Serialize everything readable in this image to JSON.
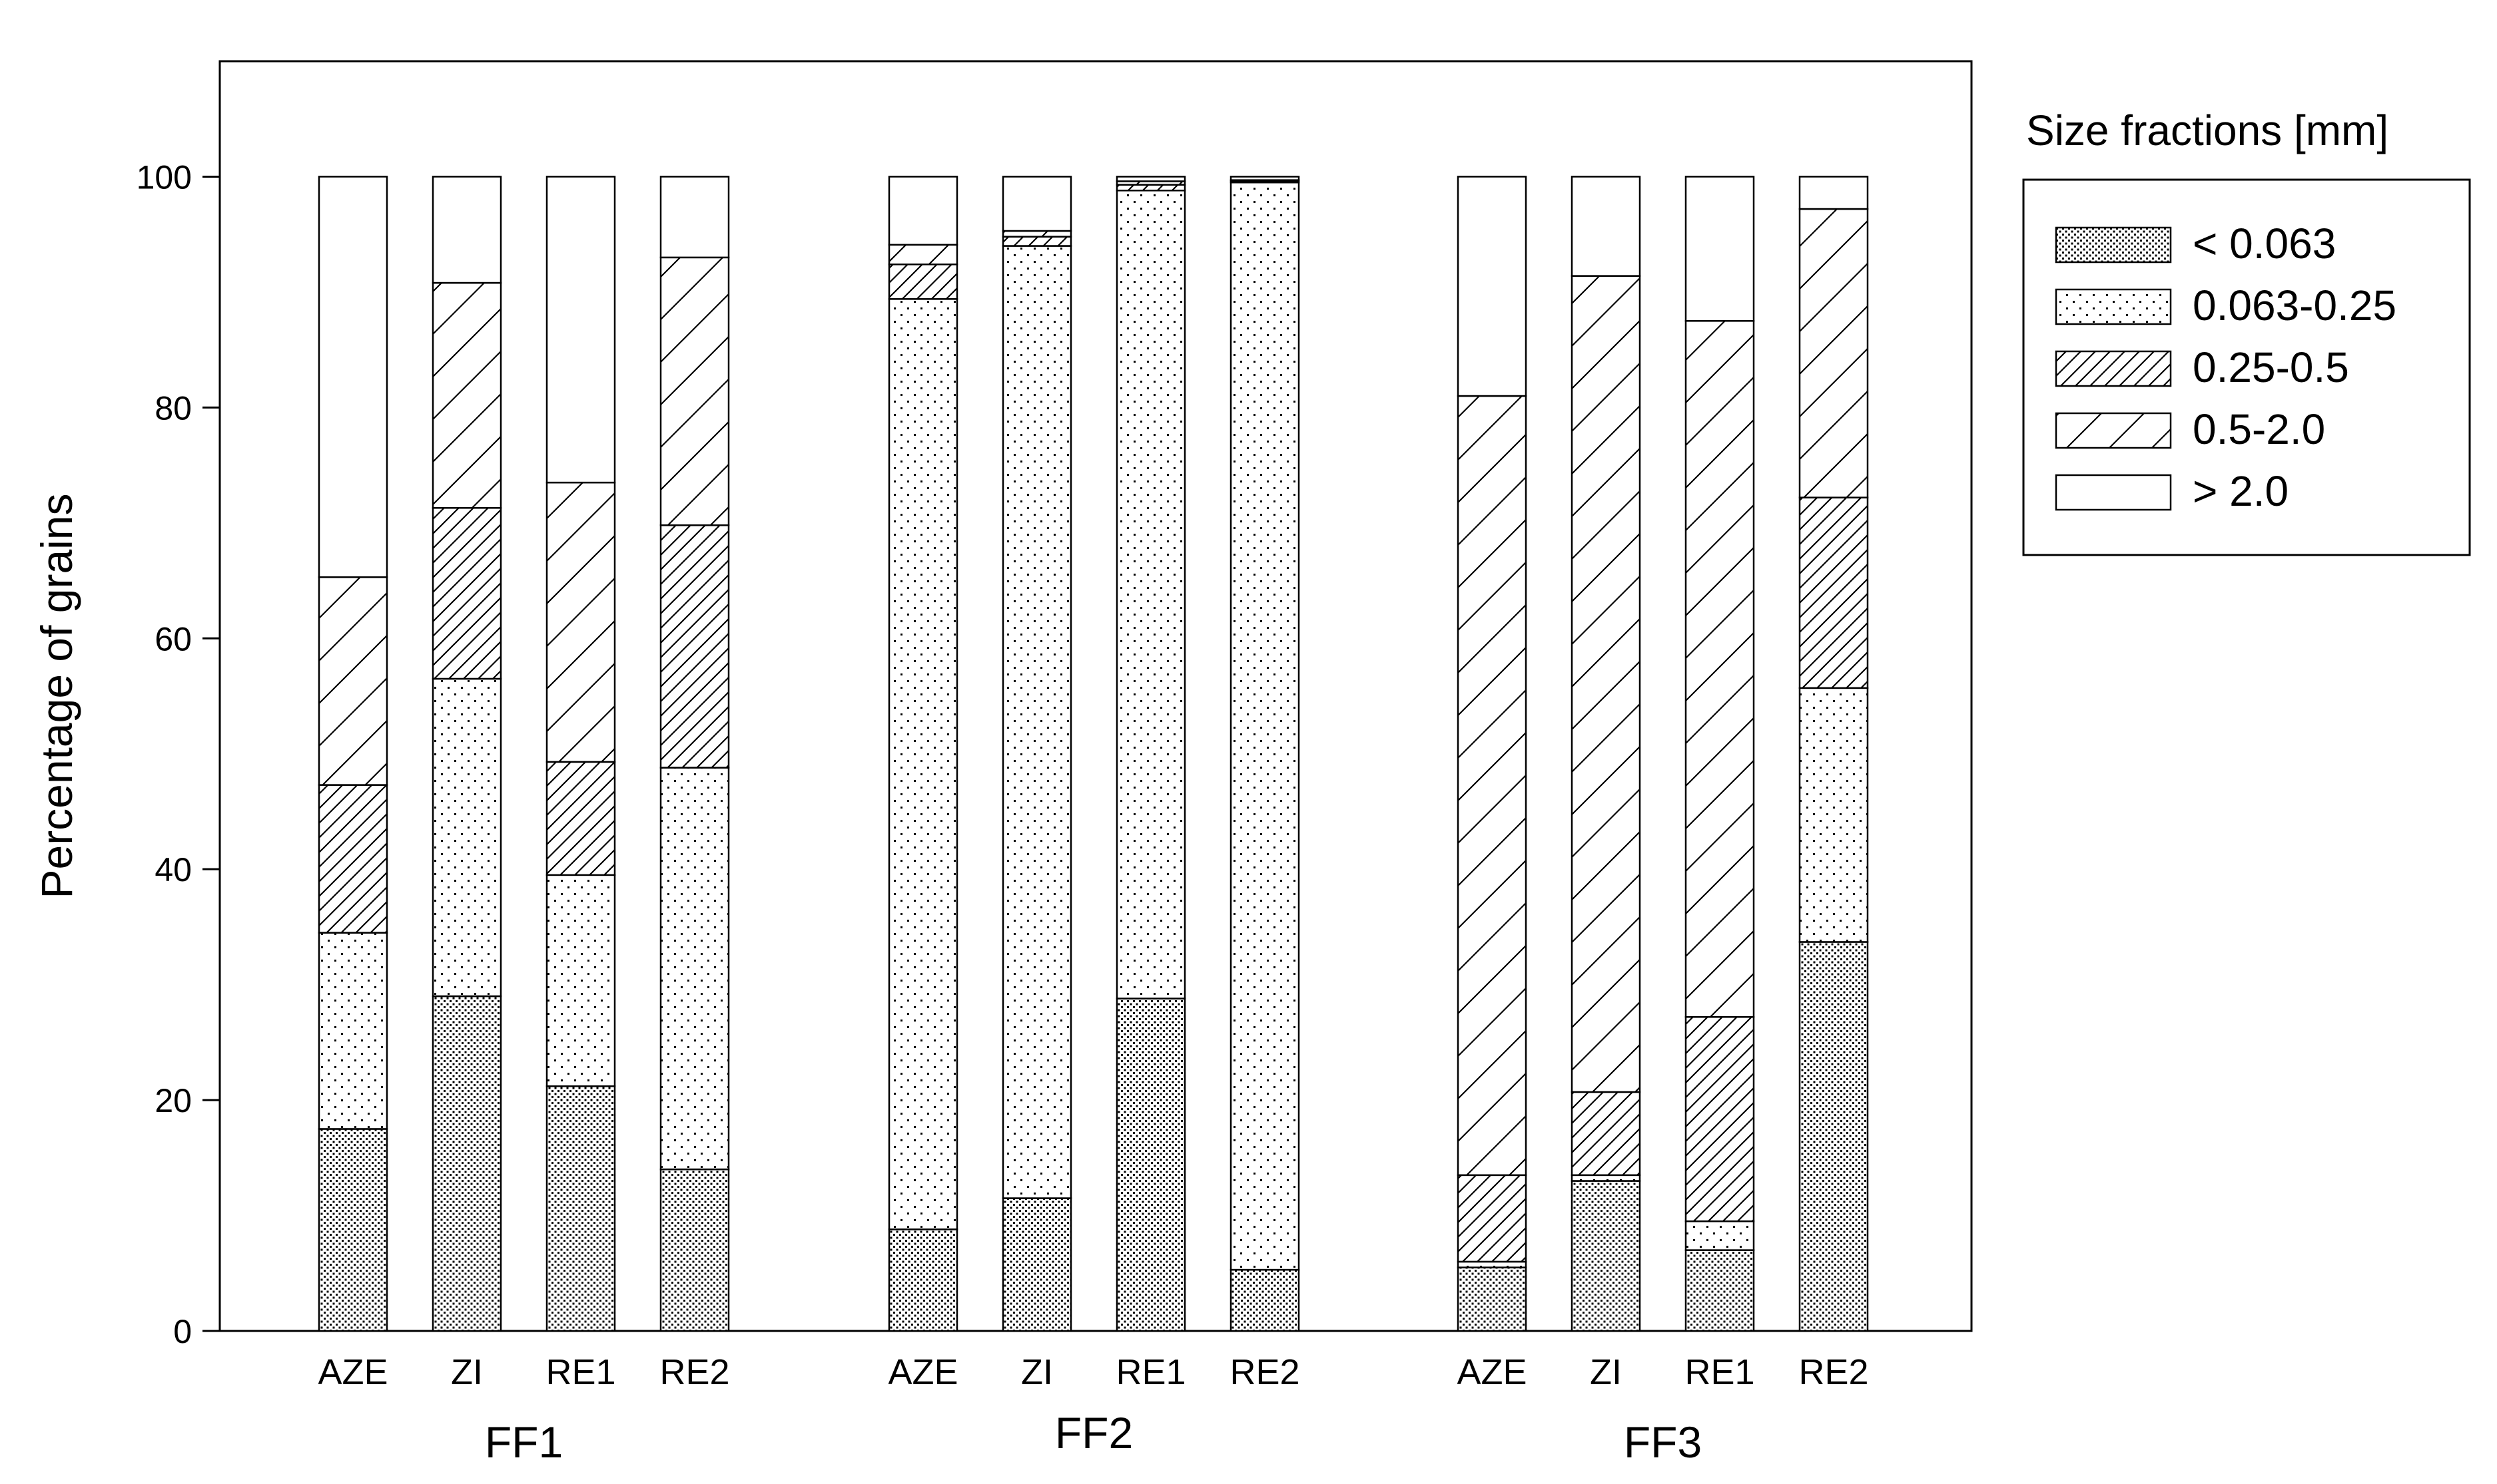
{
  "chart_data": {
    "type": "bar",
    "stacked": true,
    "ylabel": "Percentage of grains",
    "ylim": [
      0,
      110
    ],
    "yticks": [
      0,
      20,
      40,
      60,
      80,
      100
    ],
    "grid": false,
    "legend": {
      "title": "Size fractions [mm]",
      "placement": "right",
      "entries": [
        "< 0.063",
        "0.063-0.25",
        "0.25-0.5",
        "0.5-2.0",
        "> 2.0"
      ]
    },
    "groups": [
      {
        "label": "FF1",
        "categories": [
          "AZE",
          "ZI",
          "RE1",
          "RE2"
        ]
      },
      {
        "label": "FF2",
        "categories": [
          "AZE",
          "ZI",
          "RE1",
          "RE2"
        ]
      },
      {
        "label": "FF3",
        "categories": [
          "AZE",
          "ZI",
          "RE1",
          "RE2"
        ]
      }
    ],
    "series": [
      {
        "name": "< 0.063",
        "pattern": "dense-dots",
        "values": [
          17.5,
          29.0,
          21.2,
          14.0,
          8.8,
          11.5,
          28.8,
          5.3,
          5.5,
          13.0,
          7.0,
          33.7
        ]
      },
      {
        "name": "0.063-0.25",
        "pattern": "sparse-dots",
        "values": [
          17.0,
          27.5,
          18.3,
          34.8,
          80.6,
          82.5,
          70.0,
          94.2,
          0.5,
          0.5,
          2.5,
          22.0
        ]
      },
      {
        "name": "0.25-0.5",
        "pattern": "dense-hatch",
        "values": [
          12.8,
          14.8,
          9.8,
          21.0,
          3.0,
          0.8,
          0.5,
          0.1,
          7.5,
          7.2,
          17.7,
          16.5
        ]
      },
      {
        "name": "0.5-2.0",
        "pattern": "sparse-hatch",
        "values": [
          18.0,
          19.5,
          24.2,
          23.2,
          1.7,
          0.5,
          0.3,
          0.1,
          67.5,
          70.7,
          60.3,
          25.0
        ]
      },
      {
        "name": "> 2.0",
        "pattern": "none",
        "values": [
          34.7,
          9.2,
          26.5,
          7.0,
          5.9,
          4.7,
          0.4,
          0.3,
          19.0,
          8.6,
          12.5,
          2.8
        ]
      }
    ]
  }
}
